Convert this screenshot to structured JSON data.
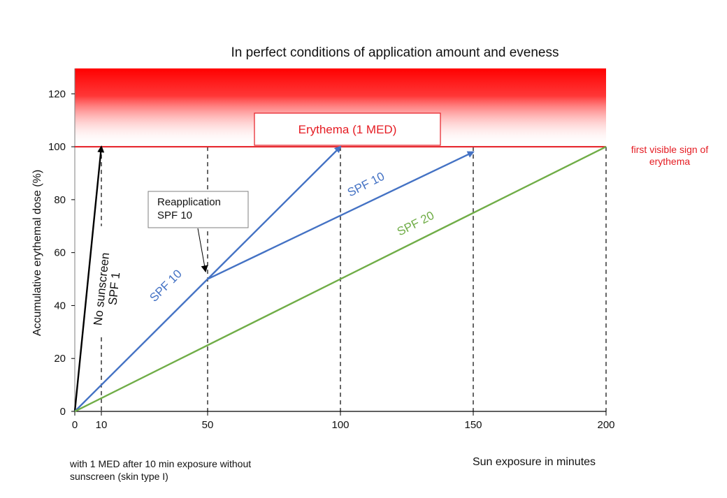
{
  "chart_data": {
    "type": "line",
    "title": "In perfect conditions of application amount and eveness",
    "xlabel": "Sun exposure in minutes",
    "ylabel": "Accumulative erythemal  dose  (%)",
    "xlim": [
      0,
      200
    ],
    "ylim": [
      0,
      128
    ],
    "x_ticks": [
      0,
      10,
      50,
      100,
      150,
      200
    ],
    "y_ticks": [
      0,
      20,
      40,
      60,
      80,
      100,
      120
    ],
    "threshold": {
      "y": 100,
      "label_line1": "first visible sign of",
      "label_line2": "erythema",
      "color": "#e51c23"
    },
    "erythema_zone": {
      "y_from": 100,
      "y_to": 128,
      "label": "Erythema (1 MED)",
      "color": "#e51c23"
    },
    "dashed_x": [
      10,
      50,
      100,
      150,
      200
    ],
    "series": [
      {
        "label_lines": [
          "No sunscreen",
          "SPF 1"
        ],
        "color": "#000000",
        "points": [
          [
            0,
            0
          ],
          [
            10,
            100
          ]
        ],
        "arrow": true
      },
      {
        "label_lines": [
          "SPF 10"
        ],
        "color": "#4472c4",
        "points": [
          [
            0,
            0
          ],
          [
            100,
            100
          ]
        ],
        "arrow": true
      },
      {
        "label_lines": [
          "SPF 10"
        ],
        "color": "#4472c4",
        "points": [
          [
            50,
            50
          ],
          [
            150,
            98
          ]
        ],
        "arrow": true
      },
      {
        "label_lines": [
          "SPF 20"
        ],
        "color": "#70ad47",
        "points": [
          [
            0,
            0
          ],
          [
            200,
            100
          ]
        ],
        "arrow": false
      }
    ],
    "annotations": [
      {
        "text_line1": "Reapplication",
        "text_line2": "SPF 10",
        "points_to": [
          50,
          53
        ]
      }
    ],
    "footnote_line1": "with 1 MED after 10 min exposure without",
    "footnote_line2": "sunscreen (skin type I)"
  }
}
